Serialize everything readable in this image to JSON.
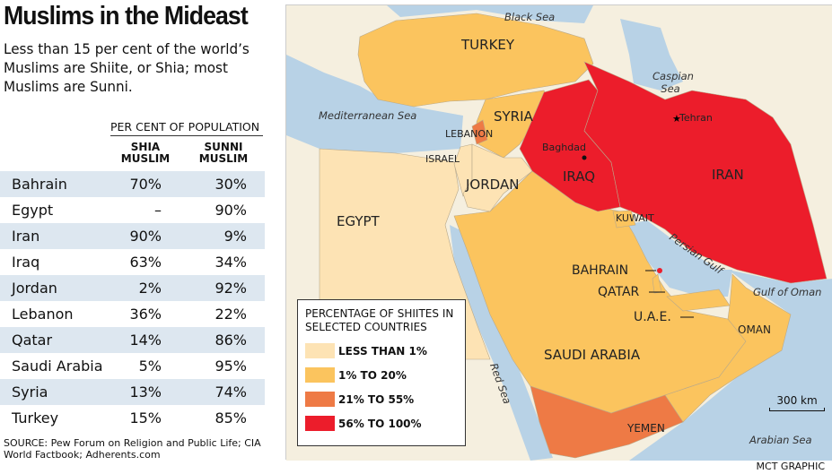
{
  "title": "Muslims in the Mideast",
  "intro": "Less than 15 per cent of the world’s Muslims are Shiite, or Shia; most Muslims are Sunni.",
  "table": {
    "group_header": "PER CENT OF POPULATION",
    "columns": [
      "SHIA MUSLIM",
      "SUNNI MUSLIM"
    ],
    "rows": [
      {
        "country": "Bahrain",
        "shia": "70%",
        "sunni": "30%"
      },
      {
        "country": "Egypt",
        "shia": "–",
        "sunni": "90%"
      },
      {
        "country": "Iran",
        "shia": "90%",
        "sunni": "9%"
      },
      {
        "country": "Iraq",
        "shia": "63%",
        "sunni": "34%"
      },
      {
        "country": "Jordan",
        "shia": "2%",
        "sunni": "92%"
      },
      {
        "country": "Lebanon",
        "shia": "36%",
        "sunni": "22%"
      },
      {
        "country": "Qatar",
        "shia": "14%",
        "sunni": "86%"
      },
      {
        "country": "Saudi Arabia",
        "shia": "5%",
        "sunni": "95%"
      },
      {
        "country": "Syria",
        "shia": "13%",
        "sunni": "74%"
      },
      {
        "country": "Turkey",
        "shia": "15%",
        "sunni": "85%"
      }
    ]
  },
  "source": "SOURCE: Pew Forum on Religion and Public Life; CIA World Factbook; Adherents.com",
  "credit": "MCT GRAPHIC",
  "map": {
    "countries": {
      "turkey": "TURKEY",
      "syria": "SYRIA",
      "lebanon": "LEBANON",
      "israel": "ISRAEL",
      "jordan": "JORDAN",
      "iraq": "IRAQ",
      "iran": "IRAN",
      "egypt": "EGYPT",
      "kuwait": "KUWAIT",
      "bahrain": "BAHRAIN",
      "qatar": "QATAR",
      "uae": "U.A.E.",
      "saudi": "SAUDI ARABIA",
      "oman": "OMAN",
      "yemen": "YEMEN"
    },
    "cities": {
      "baghdad": "Baghdad",
      "tehran": "Tehran"
    },
    "waters": {
      "black": "Black Sea",
      "caspian": "Caspian Sea",
      "med": "Mediterranean Sea",
      "persian": "Persian Gulf",
      "oman": "Gulf of Oman",
      "red": "Red Sea",
      "arabian": "Arabian Sea"
    },
    "scale": "300 km"
  },
  "legend": {
    "title": "PERCENTAGE OF SHIITES IN SELECTED COUNTRIES",
    "items": [
      {
        "label": "LESS THAN 1%",
        "color": "#fde3b4"
      },
      {
        "label": "1% TO 20%",
        "color": "#fbc45e"
      },
      {
        "label": "21% TO 55%",
        "color": "#ee7a45"
      },
      {
        "label": "56% TO 100%",
        "color": "#ec1d2b"
      }
    ]
  },
  "colors": {
    "sea": "#b8d2e6",
    "other_land": "#f5efdf"
  }
}
